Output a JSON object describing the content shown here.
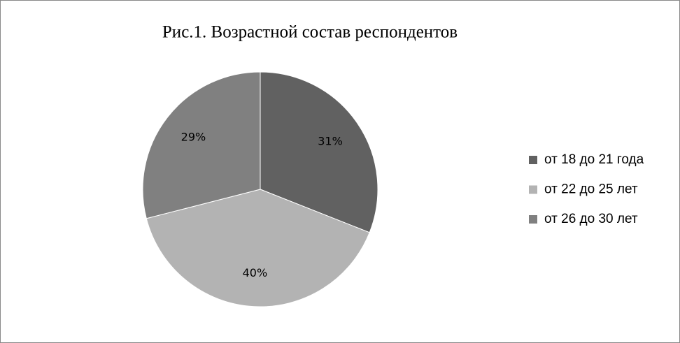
{
  "chart_data": {
    "type": "pie",
    "title": "Рис.1. Возрастной состав респондентов",
    "categories": [
      "от 18 до 21 года",
      "от 22 до 25 лет",
      "от 26 до 30 лет"
    ],
    "values": [
      31,
      40,
      29
    ],
    "value_labels": [
      "31%",
      "40%",
      "29%"
    ],
    "colors": [
      "#616161",
      "#b3b3b3",
      "#808080"
    ],
    "legend": "right"
  }
}
